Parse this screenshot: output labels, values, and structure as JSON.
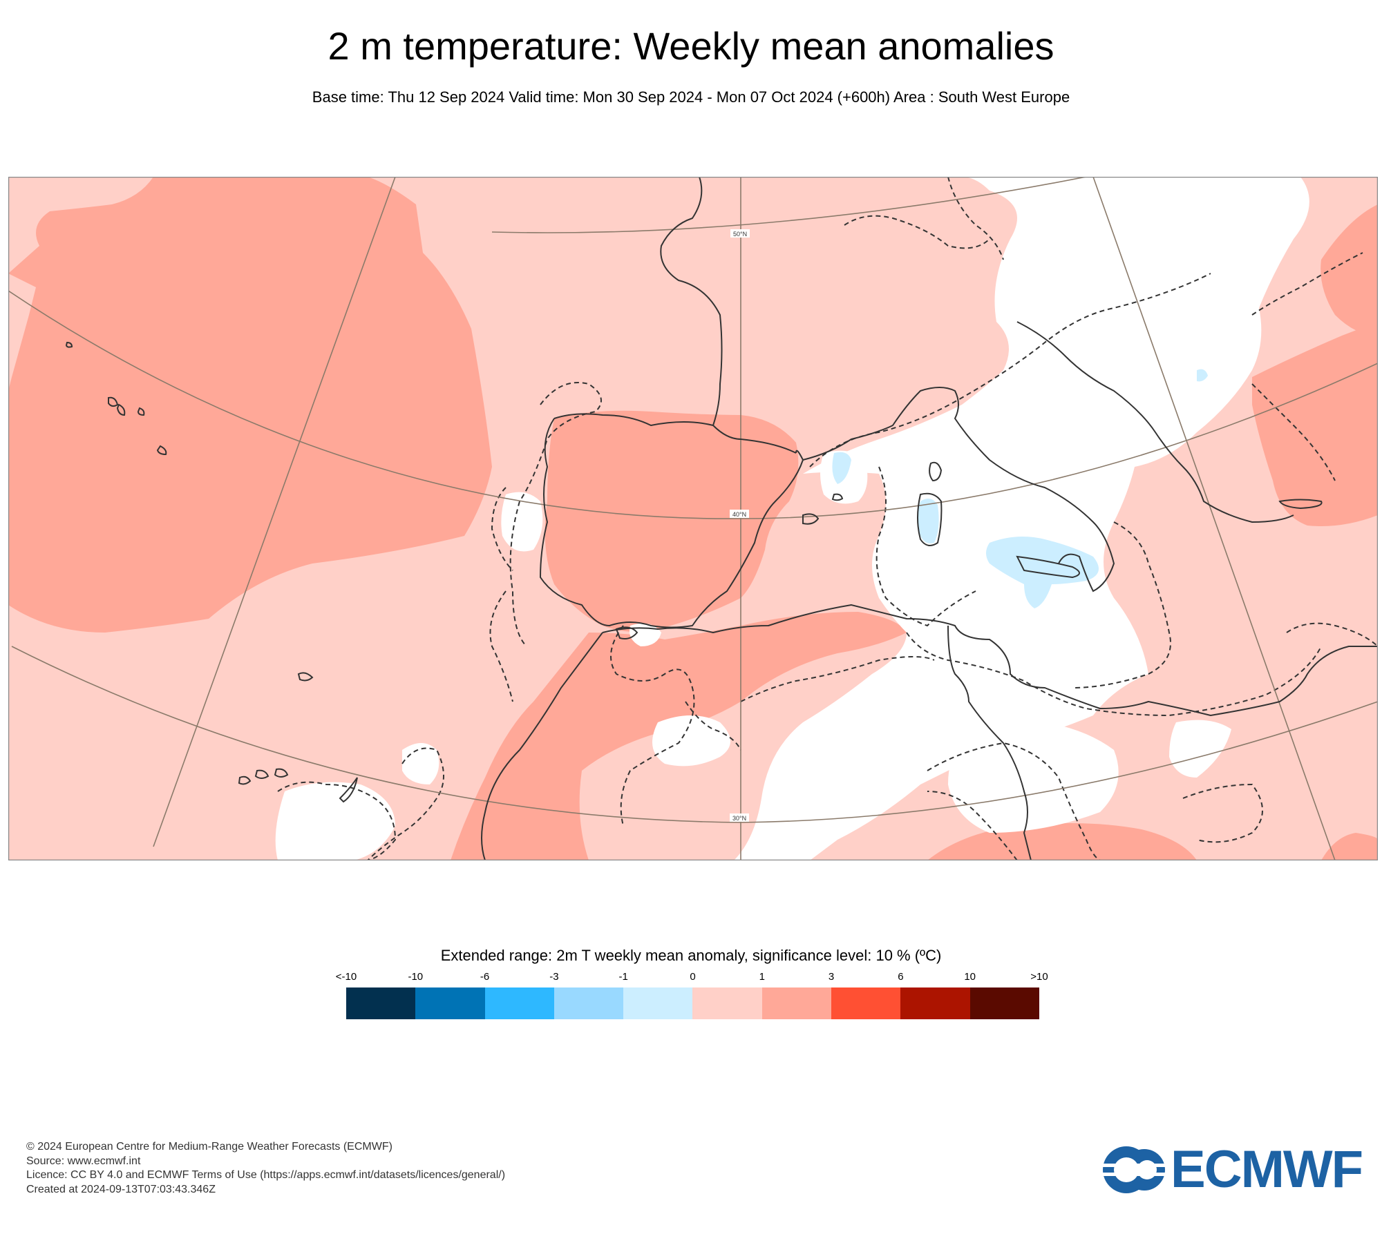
{
  "header": {
    "title": "2 m temperature: Weekly mean anomalies",
    "subtitle": "Base time: Thu 12 Sep 2024 Valid time: Mon 30 Sep 2024 - Mon 07 Oct 2024 (+600h) Area : South West Europe"
  },
  "map": {
    "latitude_labels": [
      "50°N",
      "40°N",
      "30°N"
    ],
    "colors": {
      "background": "#ffd0c8",
      "warm": "#ffa898",
      "neutral": "#ffffff",
      "cool": "#cceeff",
      "coast": "#333333",
      "graticule": "#8a7a6a"
    }
  },
  "legend": {
    "title": "Extended range: 2m T weekly mean anomaly, significance level: 10 % (ºC)",
    "ticks": [
      "<-10",
      "-10",
      "-6",
      "-3",
      "-1",
      "0",
      "1",
      "3",
      "6",
      "10",
      ">10"
    ],
    "colors": [
      "#02304f",
      "#0073b5",
      "#2eb8ff",
      "#99d9ff",
      "#cceeff",
      "#ffd0c8",
      "#ffa898",
      "#ff5033",
      "#ac1400",
      "#5a0a00"
    ]
  },
  "footer": {
    "lines": [
      "© 2024 European Centre for Medium-Range Weather Forecasts (ECMWF)",
      "Source: www.ecmwf.int",
      "Licence: CC BY 4.0 and ECMWF Terms of Use (https://apps.ecmwf.int/datasets/licences/general/)",
      "Created at 2024-09-13T07:03:43.346Z"
    ]
  },
  "logo": {
    "text": "ECMWF",
    "color": "#1d62a4"
  }
}
